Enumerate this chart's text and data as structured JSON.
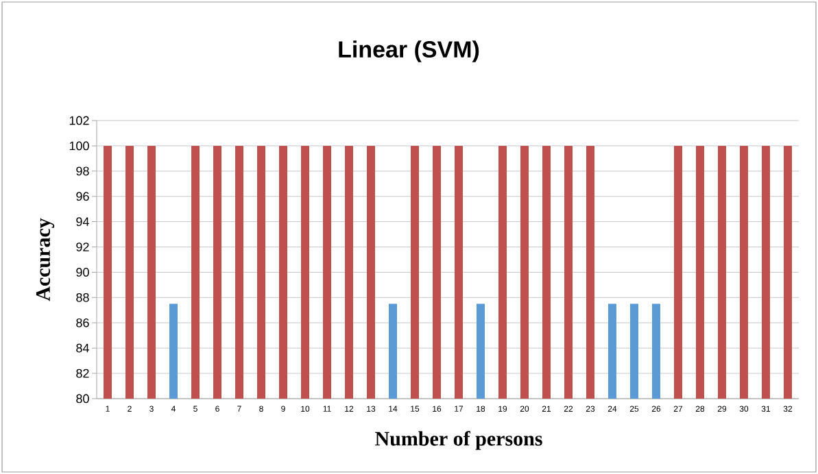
{
  "chart_data": {
    "type": "bar",
    "title": "Linear (SVM)",
    "xlabel": "Number of persons",
    "ylabel": "Accuracy",
    "categories": [
      "1",
      "2",
      "3",
      "4",
      "5",
      "6",
      "7",
      "8",
      "9",
      "10",
      "11",
      "12",
      "13",
      "14",
      "15",
      "16",
      "17",
      "18",
      "19",
      "20",
      "21",
      "22",
      "23",
      "24",
      "25",
      "26",
      "27",
      "28",
      "29",
      "30",
      "31",
      "32"
    ],
    "values": [
      100,
      100,
      100,
      87.5,
      100,
      100,
      100,
      100,
      100,
      100,
      100,
      100,
      100,
      87.5,
      100,
      100,
      100,
      87.5,
      100,
      100,
      100,
      100,
      100,
      87.5,
      87.5,
      87.5,
      100,
      100,
      100,
      100,
      100,
      100
    ],
    "colors": [
      "#c0504d",
      "#c0504d",
      "#c0504d",
      "#5b9bd5",
      "#c0504d",
      "#c0504d",
      "#c0504d",
      "#c0504d",
      "#c0504d",
      "#c0504d",
      "#c0504d",
      "#c0504d",
      "#c0504d",
      "#5b9bd5",
      "#c0504d",
      "#c0504d",
      "#c0504d",
      "#5b9bd5",
      "#c0504d",
      "#c0504d",
      "#c0504d",
      "#c0504d",
      "#c0504d",
      "#5b9bd5",
      "#5b9bd5",
      "#5b9bd5",
      "#c0504d",
      "#c0504d",
      "#c0504d",
      "#c0504d",
      "#c0504d",
      "#c0504d"
    ],
    "ylim": [
      80,
      102
    ],
    "yticks": [
      80,
      82,
      84,
      86,
      88,
      90,
      92,
      94,
      96,
      98,
      100,
      102
    ],
    "grid": "y"
  }
}
